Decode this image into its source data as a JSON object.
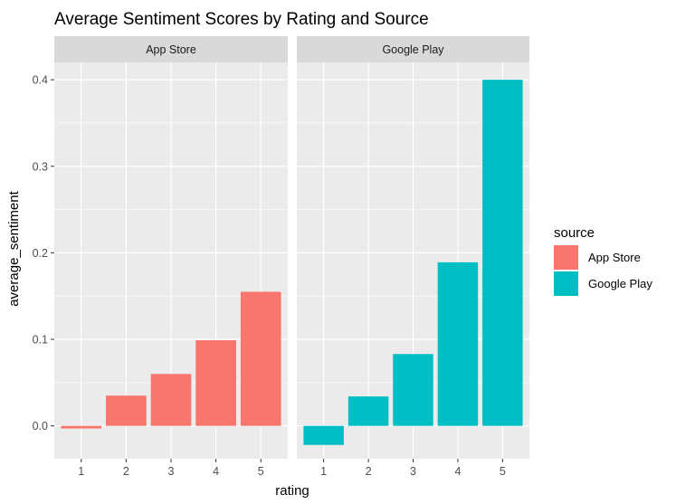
{
  "chart_data": {
    "type": "bar",
    "title": "Average Sentiment Scores by Rating and Source",
    "xlabel": "rating",
    "ylabel": "average_sentiment",
    "categories": [
      "1",
      "2",
      "3",
      "4",
      "5"
    ],
    "y_ticks": [
      "0.0",
      "0.1",
      "0.2",
      "0.3",
      "0.4"
    ],
    "ylim": [
      -0.038,
      0.42
    ],
    "grid": true,
    "legend": {
      "title": "source",
      "position": "right",
      "entries": [
        "App Store",
        "Google Play"
      ]
    },
    "series": [
      {
        "name": "App Store",
        "facet": "App Store",
        "color": "#F8766D",
        "values": [
          -0.003,
          0.035,
          0.06,
          0.099,
          0.155
        ]
      },
      {
        "name": "Google Play",
        "facet": "Google Play",
        "color": "#00BFC4",
        "values": [
          -0.022,
          0.034,
          0.083,
          0.189,
          0.4
        ]
      }
    ],
    "panel_background": "#EBEBEB",
    "strip_background": "#D9D9D9",
    "grid_color": "#FFFFFF"
  }
}
